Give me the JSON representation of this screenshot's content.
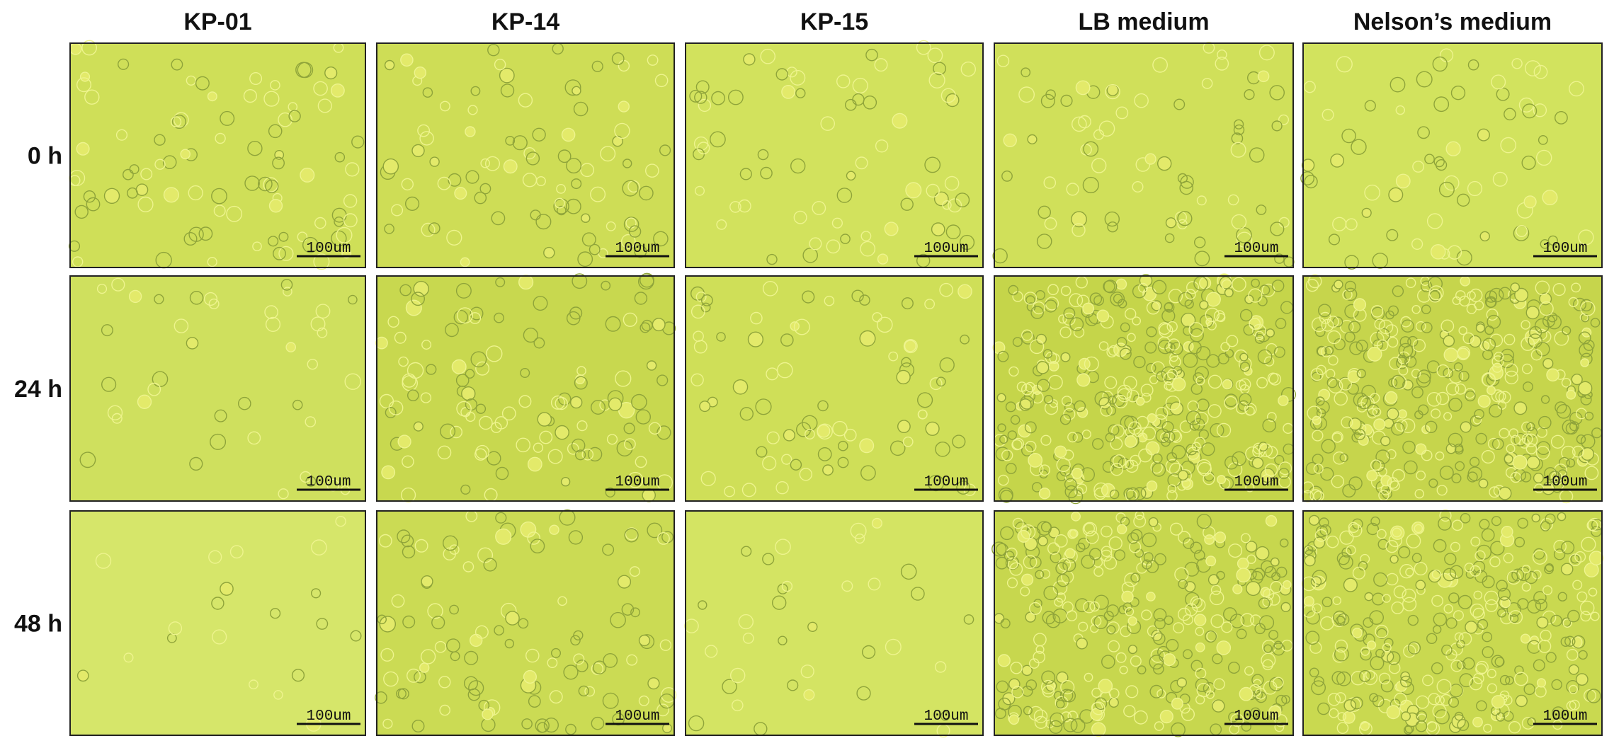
{
  "columns": [
    "KP-01",
    "KP-14",
    "KP-15",
    "LB medium",
    "Nelson’s medium"
  ],
  "rows": [
    "0 h",
    "24 h",
    "48 h"
  ],
  "scale_bar": "100um"
}
